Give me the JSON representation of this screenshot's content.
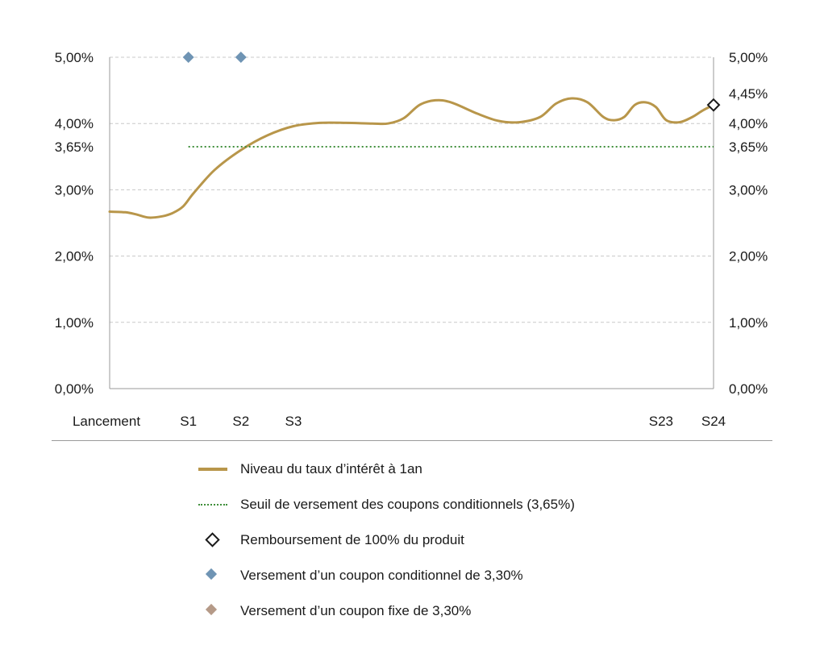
{
  "chart_data": {
    "type": "line",
    "y_ticks_left": [
      "0,00%",
      "1,00%",
      "2,00%",
      "3,00%",
      "3,65%",
      "4,00%",
      "5,00%"
    ],
    "y_tick_values_left": [
      0,
      1,
      2,
      3,
      3.65,
      4,
      5
    ],
    "y_ticks_right": [
      "0,00%",
      "1,00%",
      "2,00%",
      "3,00%",
      "3,65%",
      "4,00%",
      "4,45%",
      "5,00%"
    ],
    "y_tick_values_right": [
      0,
      1,
      2,
      3,
      3.65,
      4,
      4.45,
      5
    ],
    "ylim": [
      0,
      5
    ],
    "grid": true,
    "x_ticks": [
      "Lancement",
      "S1",
      "S2",
      "S3",
      "S23",
      "S24"
    ],
    "x_tick_positions": [
      0,
      1.5,
      2.5,
      3.5,
      10.5,
      11.5
    ],
    "xlim": [
      0,
      11.5
    ],
    "series": [
      {
        "name": "Niveau du taux d’intérêt à 1an",
        "kind": "line",
        "color": "#b8964a",
        "points": [
          [
            0,
            2.67
          ],
          [
            0.3,
            2.66
          ],
          [
            0.5,
            2.63
          ],
          [
            0.75,
            2.58
          ],
          [
            1.0,
            2.6
          ],
          [
            1.2,
            2.65
          ],
          [
            1.4,
            2.75
          ],
          [
            1.6,
            2.95
          ],
          [
            2.0,
            3.3
          ],
          [
            2.5,
            3.6
          ],
          [
            3.0,
            3.82
          ],
          [
            3.5,
            3.96
          ],
          [
            4.0,
            4.01
          ],
          [
            4.5,
            4.01
          ],
          [
            5.0,
            4.0
          ],
          [
            5.3,
            4.0
          ],
          [
            5.6,
            4.08
          ],
          [
            5.9,
            4.28
          ],
          [
            6.2,
            4.35
          ],
          [
            6.5,
            4.32
          ],
          [
            7.0,
            4.15
          ],
          [
            7.4,
            4.04
          ],
          [
            7.8,
            4.02
          ],
          [
            8.2,
            4.1
          ],
          [
            8.5,
            4.3
          ],
          [
            8.8,
            4.38
          ],
          [
            9.1,
            4.32
          ],
          [
            9.4,
            4.1
          ],
          [
            9.6,
            4.05
          ],
          [
            9.8,
            4.1
          ],
          [
            10.0,
            4.28
          ],
          [
            10.2,
            4.32
          ],
          [
            10.4,
            4.25
          ],
          [
            10.6,
            4.05
          ],
          [
            10.85,
            4.02
          ],
          [
            11.1,
            4.1
          ],
          [
            11.3,
            4.2
          ],
          [
            11.5,
            4.28
          ]
        ]
      },
      {
        "name": "Seuil de versement des coupons conditionnels (3,65%)",
        "kind": "threshold",
        "color": "#3f8f3a",
        "y": 3.65,
        "x_range": [
          1.5,
          11.5
        ]
      },
      {
        "name": "Remboursement de 100% du produit",
        "kind": "marker-open-diamond",
        "color": "#1a1a1a",
        "points": [
          [
            11.5,
            4.28
          ]
        ]
      },
      {
        "name": "Versement d’un coupon conditionnel de 3,30%",
        "kind": "marker-diamond",
        "color": "#6f94b4",
        "points": [
          [
            1.5,
            5.0
          ],
          [
            2.5,
            5.0
          ]
        ]
      },
      {
        "name": "Versement d’un coupon fixe de 3,30%",
        "kind": "marker-diamond",
        "color": "#b59a88",
        "points": []
      }
    ],
    "legend_position": "bottom"
  },
  "legend": [
    {
      "label": "Niveau du taux d’intérêt à 1an",
      "symbol": "line"
    },
    {
      "label": "Seuil de versement des coupons conditionnels (3,65%)",
      "symbol": "dotted"
    },
    {
      "label": "Remboursement de 100% du produit",
      "symbol": "open-diamond"
    },
    {
      "label": "Versement d’un coupon conditionnel de 3,30%",
      "symbol": "blue-diamond"
    },
    {
      "label": "Versement d’un coupon fixe de 3,30%",
      "symbol": "tan-diamond"
    }
  ]
}
